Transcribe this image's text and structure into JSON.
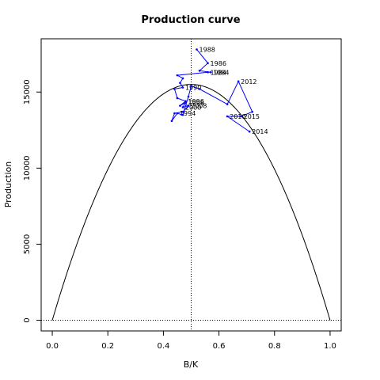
{
  "chart_data": {
    "type": "line",
    "title": "Production curve",
    "xlabel": "B/K",
    "ylabel": "Production",
    "xlim": [
      -0.04,
      1.04
    ],
    "ylim": [
      -700,
      18500
    ],
    "x_ticks": [
      "0.0",
      "0.2",
      "0.4",
      "0.6",
      "0.8",
      "1.0"
    ],
    "x_tick_values": [
      0,
      0.2,
      0.4,
      0.6,
      0.8,
      1.0
    ],
    "y_ticks": [
      "0",
      "5000",
      "10000",
      "15000"
    ],
    "y_tick_values": [
      0,
      5000,
      10000,
      15000
    ],
    "grid": false,
    "reference_lines": {
      "vertical_x": 0.5,
      "horizontal_y": 0,
      "style": "dotted"
    },
    "colors": {
      "series": "#0000ff",
      "curve": "#000000",
      "axes": "#000000"
    },
    "curve": {
      "shape": "parabola",
      "x_range": [
        0,
        1
      ],
      "peak": {
        "x": 0.5,
        "y": 15500
      }
    },
    "series": [
      {
        "points": [
          {
            "x": 0.52,
            "y": 17800,
            "label": "1988"
          },
          {
            "x": 0.56,
            "y": 16900,
            "label": "1986"
          },
          {
            "x": 0.53,
            "y": 16400,
            "label": ""
          },
          {
            "x": 0.57,
            "y": 16300,
            "label": "1984"
          },
          {
            "x": 0.56,
            "y": 16300,
            "label": "1984"
          },
          {
            "x": 0.45,
            "y": 16100,
            "label": ""
          },
          {
            "x": 0.47,
            "y": 15900,
            "label": ""
          },
          {
            "x": 0.46,
            "y": 15600,
            "label": ""
          },
          {
            "x": 0.47,
            "y": 15300,
            "label": "1990"
          },
          {
            "x": 0.44,
            "y": 15200,
            "label": ""
          },
          {
            "x": 0.45,
            "y": 14600,
            "label": ""
          },
          {
            "x": 0.48,
            "y": 14400,
            "label": "1996"
          },
          {
            "x": 0.46,
            "y": 14100,
            "label": ""
          },
          {
            "x": 0.48,
            "y": 14300,
            "label": "1998"
          },
          {
            "x": 0.47,
            "y": 14000,
            "label": "2000"
          },
          {
            "x": 0.49,
            "y": 14100,
            "label": "2008"
          },
          {
            "x": 0.47,
            "y": 13700,
            "label": ""
          },
          {
            "x": 0.44,
            "y": 13600,
            "label": ""
          },
          {
            "x": 0.43,
            "y": 13100,
            "label": ""
          },
          {
            "x": 0.45,
            "y": 13600,
            "label": "1994"
          },
          {
            "x": 0.47,
            "y": 13500,
            "label": ""
          },
          {
            "x": 0.49,
            "y": 14700,
            "label": ""
          },
          {
            "x": 0.5,
            "y": 15400,
            "label": ""
          },
          {
            "x": 0.53,
            "y": 15200,
            "label": ""
          },
          {
            "x": 0.63,
            "y": 14200,
            "label": ""
          },
          {
            "x": 0.67,
            "y": 15700,
            "label": "2012"
          },
          {
            "x": 0.72,
            "y": 13700,
            "label": ""
          },
          {
            "x": 0.68,
            "y": 13400,
            "label": "2015"
          },
          {
            "x": 0.63,
            "y": 13400,
            "label": "2010"
          },
          {
            "x": 0.71,
            "y": 12400,
            "label": "2014"
          }
        ]
      }
    ]
  }
}
